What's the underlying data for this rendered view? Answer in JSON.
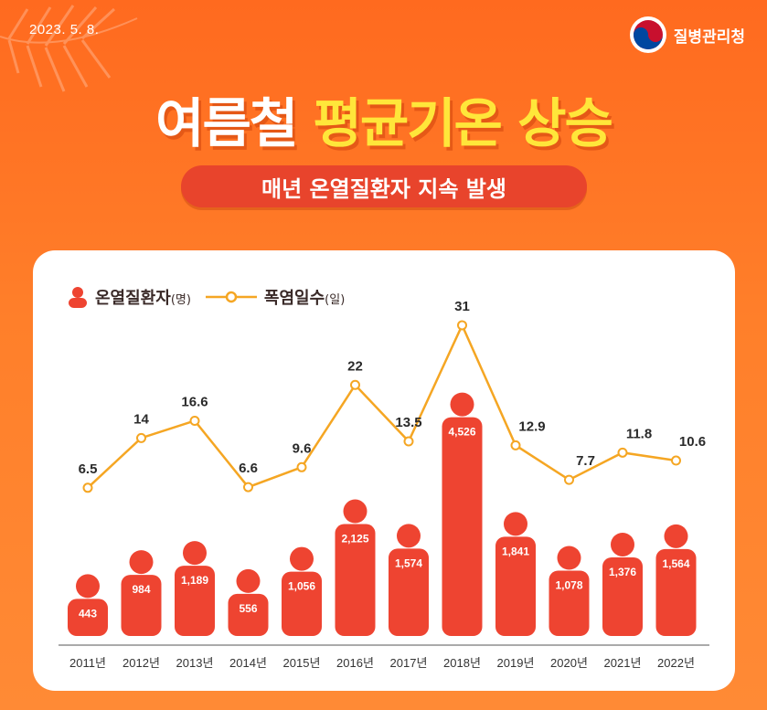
{
  "header": {
    "date": "2023. 5. 8.",
    "org_name": "질병관리청",
    "title_white": "여름철",
    "title_yellow": "평균기온 상승",
    "subtitle": "매년 온열질환자 지속 발생"
  },
  "legend": {
    "patients": "온열질환자",
    "patients_unit": "(명)",
    "heatwave": "폭염일수",
    "heatwave_unit": "(일)"
  },
  "colors": {
    "background": "#ff7a28",
    "bar": "#ee4431",
    "line": "#f5a623",
    "title_yellow": "#ffe63a"
  },
  "chart_data": {
    "type": "bar",
    "categories": [
      "2011년",
      "2012년",
      "2013년",
      "2014년",
      "2015년",
      "2016년",
      "2017년",
      "2018년",
      "2019년",
      "2020년",
      "2021년",
      "2022년"
    ],
    "series": [
      {
        "name": "온열질환자",
        "unit": "명",
        "type": "bar",
        "values": [
          443,
          984,
          1189,
          556,
          1056,
          2125,
          1574,
          4526,
          1841,
          1078,
          1376,
          1564
        ],
        "labels": [
          "443",
          "984",
          "1,189",
          "556",
          "1,056",
          "2,125",
          "1,574",
          "4,526",
          "1,841",
          "1,078",
          "1,376",
          "1,564"
        ]
      },
      {
        "name": "폭염일수",
        "unit": "일",
        "type": "line",
        "values": [
          6.5,
          14,
          16.6,
          6.6,
          9.6,
          22,
          13.5,
          31,
          12.9,
          7.7,
          11.8,
          10.6
        ],
        "labels": [
          "6.5",
          "14",
          "16.6",
          "6.6",
          "9.6",
          "22",
          "13.5",
          "31",
          "12.9",
          "7.7",
          "11.8",
          "10.6"
        ]
      }
    ]
  }
}
